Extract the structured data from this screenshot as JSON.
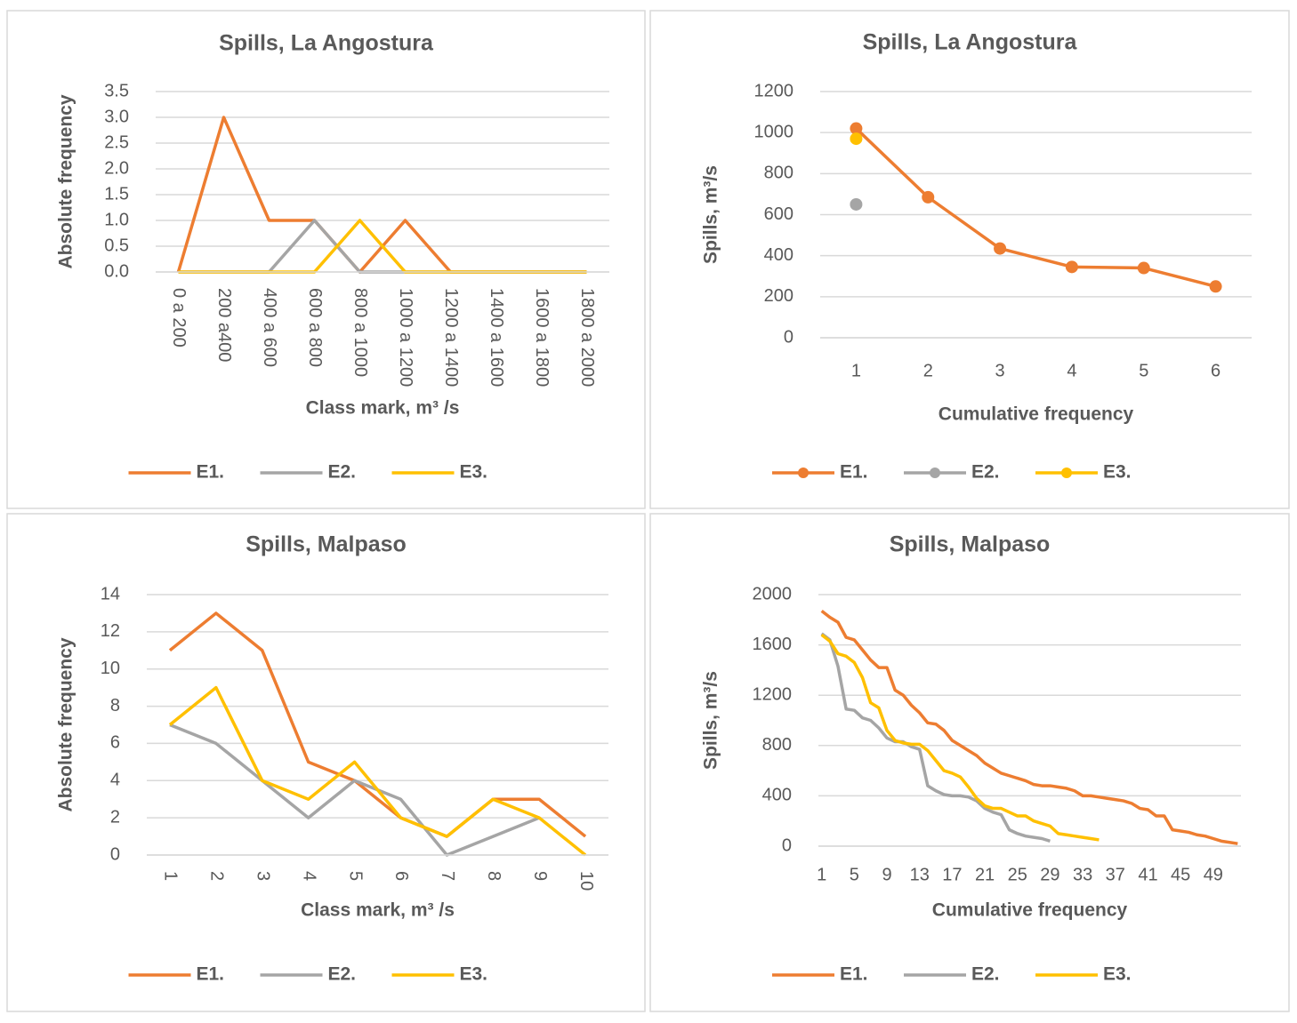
{
  "chart_data": [
    {
      "type": "line",
      "title": "Spills, La Angostura",
      "x_label": "Class mark, m³ /s",
      "y_label": "Absolute frequency",
      "categories": [
        "0 a 200",
        "200 a400",
        "400 a 600",
        "600 a 800",
        "800 a 1000",
        "1000 a 1200",
        "1200 a 1400",
        "1400 a 1600",
        "1600 a 1800",
        "1800 a 2000"
      ],
      "series": [
        {
          "name": "E1.",
          "color": "#ed7d31",
          "values": [
            0,
            3,
            1,
            1,
            0,
            1,
            0,
            0,
            0,
            0
          ]
        },
        {
          "name": "E2.",
          "color": "#a5a5a5",
          "values": [
            0,
            0,
            0,
            1,
            0,
            0,
            0,
            0,
            0,
            0
          ]
        },
        {
          "name": "E3.",
          "color": "#ffc000",
          "values": [
            0,
            0,
            0,
            0,
            1,
            0,
            0,
            0,
            0,
            0
          ]
        }
      ],
      "ylim": [
        0,
        3.5
      ],
      "yticks": [
        {
          "value": 0,
          "label": "0.0"
        },
        {
          "value": 0.5,
          "label": "0.5"
        },
        {
          "value": 1,
          "label": "1.0"
        },
        {
          "value": 1.5,
          "label": "1.5"
        },
        {
          "value": 2,
          "label": "2.0"
        },
        {
          "value": 2.5,
          "label": "2.5"
        },
        {
          "value": 3,
          "label": "3.0"
        },
        {
          "value": 3.5,
          "label": "3.5"
        }
      ],
      "grid": true,
      "markers": false,
      "legend": "bottom"
    },
    {
      "type": "line",
      "title": "Spills, La Angostura",
      "x_label": "Cumulative frequency",
      "y_label": "Spills, m³/s",
      "categories": [
        1,
        2,
        3,
        4,
        5,
        6
      ],
      "series": [
        {
          "name": "E1.",
          "color": "#ed7d31",
          "values": [
            1020,
            685,
            435,
            345,
            340,
            250
          ]
        },
        {
          "name": "E2.",
          "color": "#a5a5a5",
          "values": [
            650,
            null,
            null,
            null,
            null,
            null
          ]
        },
        {
          "name": "E3.",
          "color": "#ffc000",
          "values": [
            970,
            null,
            null,
            null,
            null,
            null
          ]
        }
      ],
      "ylim": [
        0,
        1200
      ],
      "yticks": [
        0,
        200,
        400,
        600,
        800,
        1000,
        1200
      ],
      "grid": true,
      "markers": true,
      "legend": "bottom"
    },
    {
      "type": "line",
      "title": "Spills, Malpaso",
      "x_label": "Class mark, m³ /s",
      "y_label": "Absolute frequency",
      "categories": [
        1,
        2,
        3,
        4,
        5,
        6,
        7,
        8,
        9,
        10
      ],
      "series": [
        {
          "name": "E1.",
          "color": "#ed7d31",
          "values": [
            11,
            13,
            11,
            5,
            4,
            2,
            1,
            3,
            3,
            1
          ]
        },
        {
          "name": "E2.",
          "color": "#a5a5a5",
          "values": [
            7,
            6,
            4,
            2,
            4,
            3,
            0,
            1,
            2,
            null
          ]
        },
        {
          "name": "E3.",
          "color": "#ffc000",
          "values": [
            7,
            9,
            4,
            3,
            5,
            2,
            1,
            3,
            2,
            0
          ]
        }
      ],
      "ylim": [
        0,
        14
      ],
      "yticks": [
        0,
        2,
        4,
        6,
        8,
        10,
        12,
        14
      ],
      "grid": true,
      "markers": false,
      "legend": "bottom"
    },
    {
      "type": "line",
      "title": "Spills, Malpaso",
      "x_label": "Cumulative frequency",
      "y_label": "Spills, m³/s",
      "x": [
        1,
        2,
        3,
        4,
        5,
        6,
        7,
        8,
        9,
        10,
        11,
        12,
        13,
        14,
        15,
        16,
        17,
        18,
        19,
        20,
        21,
        22,
        23,
        24,
        25,
        26,
        27,
        28,
        29,
        30,
        31,
        32,
        33,
        34,
        35,
        36,
        37,
        38,
        39,
        40,
        41,
        42,
        43,
        44,
        45,
        46,
        47,
        48,
        49,
        50,
        51,
        52
      ],
      "series": [
        {
          "name": "E1.",
          "color": "#ed7d31",
          "values": [
            1870,
            1820,
            1780,
            1660,
            1640,
            1560,
            1480,
            1420,
            1420,
            1240,
            1200,
            1120,
            1060,
            980,
            970,
            920,
            840,
            800,
            760,
            720,
            660,
            620,
            580,
            560,
            540,
            520,
            490,
            480,
            480,
            470,
            460,
            440,
            400,
            400,
            390,
            380,
            370,
            360,
            340,
            300,
            290,
            240,
            240,
            130,
            120,
            110,
            90,
            80,
            60,
            40,
            30,
            20
          ]
        },
        {
          "name": "E2.",
          "color": "#a5a5a5",
          "values": [
            1690,
            1640,
            1430,
            1090,
            1080,
            1020,
            1000,
            940,
            860,
            830,
            830,
            790,
            770,
            480,
            440,
            410,
            400,
            400,
            390,
            360,
            300,
            270,
            250,
            130,
            100,
            80,
            70,
            60,
            40,
            null,
            null,
            null,
            null,
            null,
            null,
            null,
            null,
            null,
            null,
            null,
            null,
            null,
            null,
            null,
            null,
            null,
            null,
            null,
            null,
            null,
            null,
            null
          ]
        },
        {
          "name": "E3.",
          "color": "#ffc000",
          "values": [
            1680,
            1630,
            1530,
            1510,
            1460,
            1340,
            1140,
            1100,
            920,
            840,
            820,
            810,
            810,
            760,
            680,
            600,
            580,
            550,
            470,
            380,
            320,
            300,
            300,
            270,
            240,
            240,
            200,
            180,
            160,
            100,
            90,
            80,
            70,
            60,
            50,
            null,
            null,
            null,
            null,
            null,
            null,
            null,
            null,
            null,
            null,
            null,
            null,
            null,
            null,
            null,
            null,
            null
          ]
        }
      ],
      "xlim": [
        0.6,
        52.4
      ],
      "xticks": [
        1,
        5,
        9,
        13,
        17,
        21,
        25,
        29,
        33,
        37,
        41,
        45,
        49
      ],
      "ylim": [
        0,
        2000
      ],
      "yticks": [
        0,
        400,
        800,
        1200,
        1600,
        2000
      ],
      "grid": true,
      "markers": false,
      "legend": "bottom"
    }
  ]
}
